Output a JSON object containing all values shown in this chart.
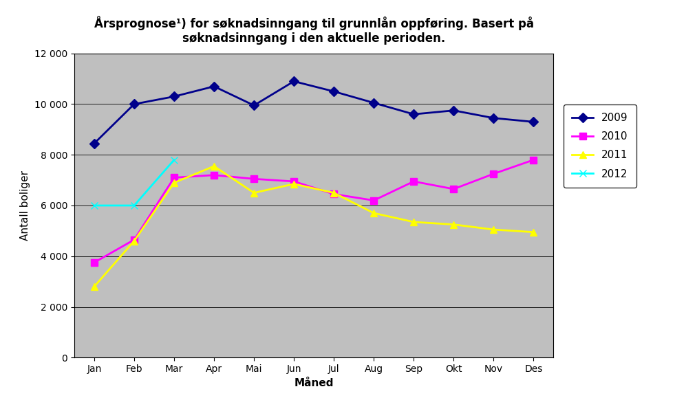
{
  "title_line1": "Årsprognose¹) for søknadsinngang til grunnlån oppføring. Basert på",
  "title_line2": "søknadsinngang i den aktuelle perioden.",
  "xlabel": "Måned",
  "ylabel": "Antall boliger",
  "months": [
    "Jan",
    "Feb",
    "Mar",
    "Apr",
    "Mai",
    "Jun",
    "Jul",
    "Aug",
    "Sep",
    "Okt",
    "Nov",
    "Des"
  ],
  "series_order": [
    "2009",
    "2010",
    "2011",
    "2012"
  ],
  "series": {
    "2009": {
      "values": [
        8450,
        10000,
        10300,
        10700,
        9950,
        10900,
        10500,
        10050,
        9600,
        9750,
        9450,
        9300
      ],
      "color": "#00008B",
      "marker": "D",
      "linewidth": 2
    },
    "2010": {
      "values": [
        3750,
        4650,
        7100,
        7200,
        7050,
        6950,
        6450,
        6200,
        6950,
        6650,
        7250,
        7800
      ],
      "color": "#FF00FF",
      "marker": "s",
      "linewidth": 2
    },
    "2011": {
      "values": [
        2800,
        4600,
        6900,
        7550,
        6500,
        6850,
        6500,
        5700,
        5350,
        5250,
        5050,
        4950
      ],
      "color": "#FFFF00",
      "marker": "^",
      "linewidth": 2
    },
    "2012": {
      "values": [
        6000,
        6000,
        7800,
        null,
        null,
        null,
        null,
        null,
        null,
        null,
        null,
        null
      ],
      "color": "#00FFFF",
      "marker": "x",
      "linewidth": 2
    }
  },
  "ylim": [
    0,
    12000
  ],
  "yticks": [
    0,
    2000,
    4000,
    6000,
    8000,
    10000,
    12000
  ],
  "plot_area_color": "#BFBFBF",
  "title_fontsize": 12,
  "axis_label_fontsize": 11,
  "legend_fontsize": 11,
  "tick_fontsize": 10
}
